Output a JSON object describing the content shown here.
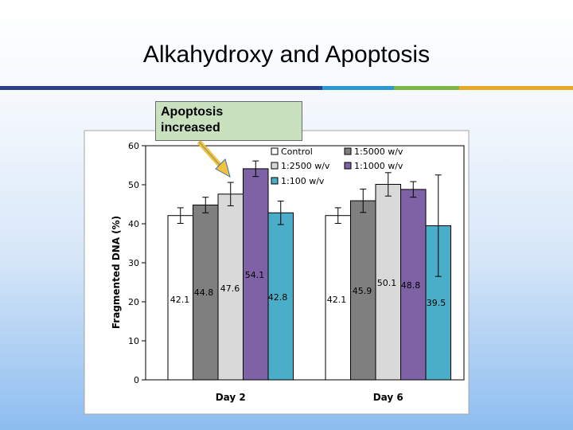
{
  "slide": {
    "title": "Alkahydroxy and Apoptosis",
    "callout_line1": "Apoptosis",
    "callout_line2": "increased",
    "rule_colors": [
      "#2b3f8c",
      "#2d97d2",
      "#7ab648",
      "#e6a722"
    ]
  },
  "chart_data": {
    "type": "bar",
    "title": "",
    "xlabel": "",
    "ylabel": "Fragmented DNA (%)",
    "ylim": [
      0,
      60
    ],
    "yticks": [
      0,
      10,
      20,
      30,
      40,
      50,
      60
    ],
    "grid": false,
    "legend_placement": "top-right",
    "categories": [
      "Day 2",
      "Day 6"
    ],
    "series": [
      {
        "name": "Control",
        "color": "#ffffff",
        "values": [
          42.1,
          42.1
        ],
        "errors": [
          2,
          2
        ],
        "labels": [
          "42.1",
          "42.1"
        ]
      },
      {
        "name": "1:5000 w/v",
        "color": "#7f7f7f",
        "values": [
          44.8,
          45.9
        ],
        "errors": [
          2,
          3
        ],
        "labels": [
          "44.8",
          "45.9"
        ]
      },
      {
        "name": "1:2500 w/v",
        "color": "#d9d9d9",
        "values": [
          47.6,
          50.1
        ],
        "errors": [
          3,
          3
        ],
        "labels": [
          "47.6",
          "50.1"
        ]
      },
      {
        "name": "1:1000 w/v",
        "color": "#7f62a5",
        "values": [
          54.1,
          48.8
        ],
        "errors": [
          2,
          2
        ],
        "labels": [
          "54.1",
          "48.8"
        ]
      },
      {
        "name": "1:100 w/v",
        "color": "#4aaec8",
        "values": [
          42.8,
          39.5
        ],
        "errors": [
          3,
          13
        ],
        "labels": [
          "42.8",
          "39.5"
        ]
      }
    ]
  }
}
